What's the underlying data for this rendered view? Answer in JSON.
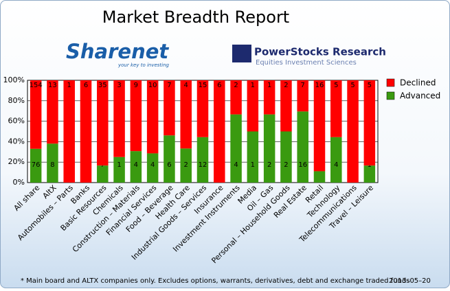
{
  "chart_data": {
    "type": "stacked-percent-bar",
    "title": "Market Breadth Report",
    "logos": [
      {
        "name": "Sharenet",
        "tagline": "your key to investing"
      },
      {
        "name": "PowerStocks  Research",
        "tagline": "Equities Investment Sciences"
      }
    ],
    "categories": [
      "All share",
      "AltX",
      "Automobiles – Parts",
      "Banks",
      "Basic Resources",
      "Chemicals",
      "Construction – Materials",
      "Financial Services",
      "Food – Beverage",
      "Health Care",
      "Industrial Goods – Services",
      "Insurance",
      "Investment Instruments",
      "Media",
      "Oil – Gas",
      "Personal – Household Goods",
      "Real Estate",
      "Retail",
      "Technology",
      "Telecommunications",
      "Travel – Leisure"
    ],
    "series": [
      {
        "name": "Advanced",
        "color": "#3a9a10",
        "values": [
          76,
          8,
          0,
          0,
          7,
          1,
          4,
          4,
          6,
          2,
          12,
          0,
          4,
          1,
          2,
          2,
          16,
          2,
          4,
          0,
          1
        ]
      },
      {
        "name": "Declined",
        "color": "#ff0000",
        "values": [
          154,
          13,
          1,
          6,
          35,
          3,
          9,
          10,
          7,
          4,
          15,
          6,
          2,
          1,
          1,
          2,
          7,
          16,
          5,
          5,
          5
        ]
      }
    ],
    "ylim": [
      0,
      100
    ],
    "yticks": [
      {
        "value": 0,
        "label": "0%"
      },
      {
        "value": 20,
        "label": "20%"
      },
      {
        "value": 40,
        "label": "40%"
      },
      {
        "value": 60,
        "label": "60%"
      },
      {
        "value": 80,
        "label": "80%"
      },
      {
        "value": 100,
        "label": "100%"
      }
    ],
    "legend": "right",
    "footnote": "* Main board and ALTX companies only. Excludes options, warrants, derivatives, debt and exchange traded funds",
    "date": "2013–05–20"
  }
}
